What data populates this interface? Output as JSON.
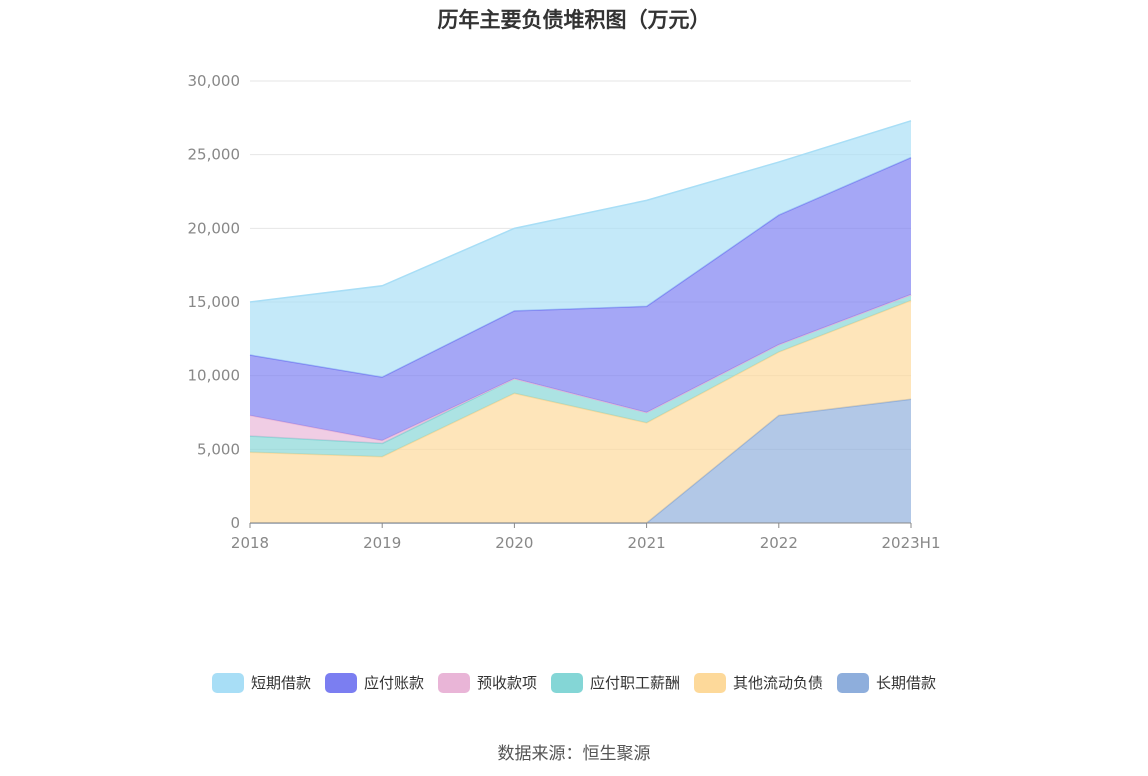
{
  "title": "历年主要负债堆积图（万元）",
  "source": "数据来源：恒生聚源",
  "chart_data": {
    "type": "area",
    "stacked": true,
    "categories": [
      "2018",
      "2019",
      "2020",
      "2021",
      "2022",
      "2023H1"
    ],
    "ylim": [
      0,
      30000
    ],
    "yticks": [
      0,
      5000,
      10000,
      15000,
      20000,
      25000,
      30000
    ],
    "ytick_labels": [
      "0",
      "5,000",
      "10,000",
      "15,000",
      "20,000",
      "25,000",
      "30,000"
    ],
    "grid": true,
    "legend_position": "bottom",
    "series": [
      {
        "name": "长期借款",
        "color": "#8eaedc",
        "values": [
          0,
          0,
          0,
          0,
          7300,
          8400
        ]
      },
      {
        "name": "其他流动负债",
        "color": "#fdd99a",
        "values": [
          4800,
          4500,
          8800,
          6800,
          4300,
          6700
        ]
      },
      {
        "name": "应付职工薪酬",
        "color": "#84d6d6",
        "values": [
          1100,
          900,
          1000,
          700,
          500,
          400
        ]
      },
      {
        "name": "预收款项",
        "color": "#e9b5d7",
        "values": [
          1400,
          200,
          0,
          0,
          0,
          0
        ]
      },
      {
        "name": "应付账款",
        "color": "#7b7ef1",
        "values": [
          4100,
          4300,
          4600,
          7200,
          8800,
          9300
        ]
      },
      {
        "name": "短期借款",
        "color": "#a8def6",
        "values": [
          3600,
          6200,
          5600,
          7200,
          3600,
          2500
        ]
      }
    ],
    "legend_order": [
      "短期借款",
      "应付账款",
      "预收款项",
      "应付职工薪酬",
      "其他流动负债",
      "长期借款"
    ]
  }
}
